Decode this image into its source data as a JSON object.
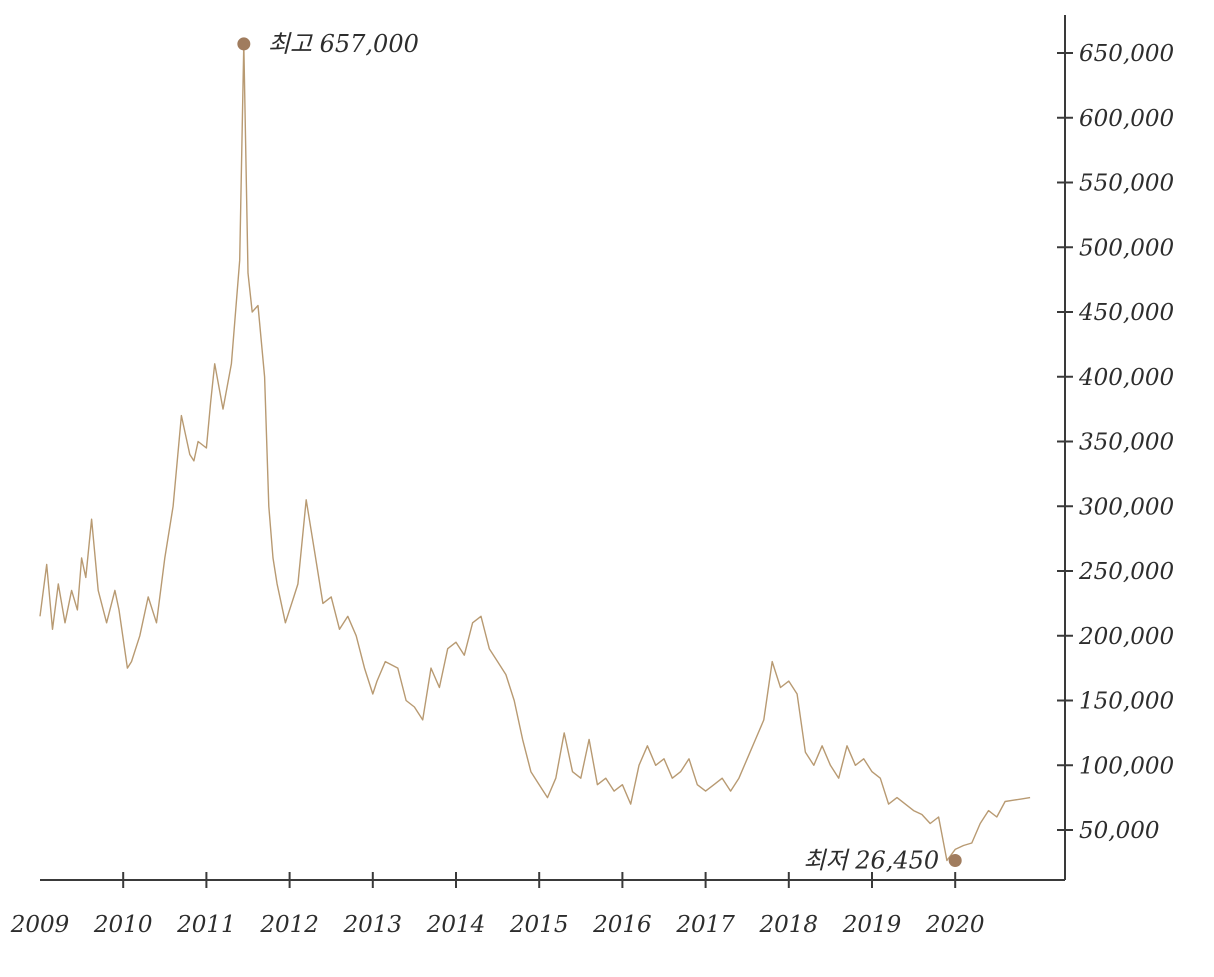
{
  "chart_data": {
    "type": "line",
    "title": "",
    "xlabel": "",
    "ylabel": "",
    "x_ticks": [
      "2009",
      "2010",
      "2011",
      "2012",
      "2013",
      "2014",
      "2015",
      "2016",
      "2017",
      "2018",
      "2019",
      "2020"
    ],
    "y_ticks": [
      "50,000",
      "100,000",
      "150,000",
      "200,000",
      "250,000",
      "300,000",
      "350,000",
      "400,000",
      "450,000",
      "500,000",
      "550,000",
      "600,000",
      "650,000"
    ],
    "y_tick_values": [
      50000,
      100000,
      150000,
      200000,
      250000,
      300000,
      350000,
      400000,
      450000,
      500000,
      550000,
      600000,
      650000
    ],
    "xlim": [
      2009.0,
      2021.0
    ],
    "ylim": [
      0,
      680000
    ],
    "grid": false,
    "y_axis_side": "right",
    "line_color": "#b89a72",
    "marker_color": "#a07c5e",
    "series": [
      {
        "x": [
          2009.0,
          2009.08,
          2009.15,
          2009.22,
          2009.3,
          2009.38,
          2009.45,
          2009.5,
          2009.55,
          2009.62,
          2009.7,
          2009.8,
          2009.9,
          2009.95,
          2010.05,
          2010.1,
          2010.2,
          2010.3,
          2010.4,
          2010.5,
          2010.6,
          2010.7,
          2010.8,
          2010.85,
          2010.9,
          2011.0,
          2011.05,
          2011.1,
          2011.2,
          2011.3,
          2011.4,
          2011.45,
          2011.5,
          2011.55,
          2011.62,
          2011.7,
          2011.75,
          2011.8,
          2011.85,
          2011.95,
          2012.05,
          2012.1,
          2012.2,
          2012.3,
          2012.4,
          2012.5,
          2012.6,
          2012.7,
          2012.8,
          2012.9,
          2013.0,
          2013.05,
          2013.15,
          2013.3,
          2013.4,
          2013.5,
          2013.6,
          2013.7,
          2013.8,
          2013.9,
          2014.0,
          2014.1,
          2014.2,
          2014.3,
          2014.4,
          2014.5,
          2014.6,
          2014.7,
          2014.8,
          2014.9,
          2015.0,
          2015.1,
          2015.2,
          2015.3,
          2015.4,
          2015.5,
          2015.6,
          2015.7,
          2015.8,
          2015.9,
          2016.0,
          2016.1,
          2016.2,
          2016.3,
          2016.4,
          2016.5,
          2016.6,
          2016.7,
          2016.8,
          2016.9,
          2017.0,
          2017.1,
          2017.2,
          2017.3,
          2017.4,
          2017.5,
          2017.6,
          2017.7,
          2017.8,
          2017.9,
          2018.0,
          2018.1,
          2018.2,
          2018.3,
          2018.4,
          2018.5,
          2018.6,
          2018.7,
          2018.8,
          2018.9,
          2019.0,
          2019.1,
          2019.2,
          2019.3,
          2019.4,
          2019.5,
          2019.6,
          2019.7,
          2019.8,
          2019.9,
          2020.0,
          2020.1,
          2020.2,
          2020.3,
          2020.4,
          2020.5,
          2020.6,
          2020.7,
          2020.8,
          2020.9
        ],
        "y": [
          215000,
          255000,
          205000,
          240000,
          210000,
          235000,
          220000,
          260000,
          245000,
          290000,
          235000,
          210000,
          235000,
          220000,
          175000,
          180000,
          200000,
          230000,
          210000,
          260000,
          300000,
          370000,
          340000,
          335000,
          350000,
          345000,
          380000,
          410000,
          375000,
          410000,
          490000,
          657000,
          480000,
          450000,
          455000,
          400000,
          300000,
          260000,
          240000,
          210000,
          230000,
          240000,
          305000,
          265000,
          225000,
          230000,
          205000,
          215000,
          200000,
          175000,
          155000,
          165000,
          180000,
          175000,
          150000,
          145000,
          135000,
          175000,
          160000,
          190000,
          195000,
          185000,
          210000,
          215000,
          190000,
          180000,
          170000,
          150000,
          120000,
          95000,
          85000,
          75000,
          90000,
          125000,
          95000,
          90000,
          120000,
          85000,
          90000,
          80000,
          85000,
          70000,
          100000,
          115000,
          100000,
          105000,
          90000,
          95000,
          105000,
          85000,
          80000,
          85000,
          90000,
          80000,
          90000,
          105000,
          120000,
          135000,
          180000,
          160000,
          165000,
          155000,
          110000,
          100000,
          115000,
          100000,
          90000,
          115000,
          100000,
          105000,
          95000,
          90000,
          70000,
          75000,
          70000,
          65000,
          62000,
          55000,
          60000,
          26450,
          35000,
          38000,
          40000,
          55000,
          65000,
          60000,
          72000,
          73000,
          74000,
          75000
        ],
        "color": "#b89a72"
      }
    ],
    "annotations": [
      {
        "label": "최고 657,000",
        "x": 2011.45,
        "y": 657000
      },
      {
        "label": "최저 26,450",
        "x": 2020.0,
        "y": 26450
      }
    ]
  }
}
